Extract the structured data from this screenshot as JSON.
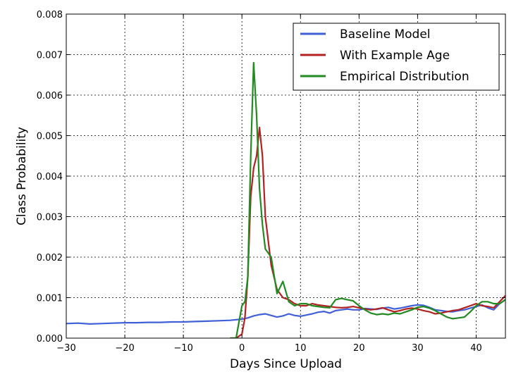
{
  "chart_data": {
    "type": "line",
    "title": "",
    "xlabel": "Days Since Upload",
    "ylabel": "Class Probability",
    "xlim": [
      -30,
      45
    ],
    "ylim": [
      0,
      0.008
    ],
    "xticks": [
      -30,
      -20,
      -10,
      0,
      10,
      20,
      30,
      40
    ],
    "xtick_labels": [
      "−30",
      "−20",
      "−10",
      "0",
      "10",
      "20",
      "30",
      "40"
    ],
    "yticks": [
      0,
      0.001,
      0.002,
      0.003,
      0.004,
      0.005,
      0.006,
      0.007,
      0.008
    ],
    "ytick_labels": [
      "0.000",
      "0.001",
      "0.002",
      "0.003",
      "0.004",
      "0.005",
      "0.006",
      "0.007",
      "0.008"
    ],
    "grid": true,
    "legend_position": "top-right",
    "series": [
      {
        "name": "Baseline Model",
        "color": "#4060d8",
        "x": [
          -30,
          -28,
          -26,
          -24,
          -22,
          -20,
          -18,
          -16,
          -14,
          -12,
          -10,
          -8,
          -6,
          -4,
          -2,
          0,
          1,
          2,
          3,
          4,
          5,
          6,
          7,
          8,
          9,
          10,
          11,
          12,
          13,
          14,
          15,
          16,
          17,
          18,
          19,
          20,
          21,
          22,
          23,
          24,
          25,
          26,
          27,
          28,
          29,
          30,
          31,
          32,
          33,
          34,
          35,
          36,
          37,
          38,
          39,
          40,
          41,
          42,
          43,
          44,
          45
        ],
        "y": [
          0.00036,
          0.00037,
          0.00035,
          0.00036,
          0.00037,
          0.00038,
          0.00038,
          0.00039,
          0.00039,
          0.0004,
          0.0004,
          0.00041,
          0.00042,
          0.00043,
          0.00044,
          0.00047,
          0.0005,
          0.00055,
          0.00058,
          0.0006,
          0.00056,
          0.00052,
          0.00055,
          0.0006,
          0.00056,
          0.00054,
          0.00057,
          0.0006,
          0.00064,
          0.00066,
          0.00062,
          0.00068,
          0.0007,
          0.00072,
          0.0007,
          0.0007,
          0.00073,
          0.00072,
          0.00071,
          0.00074,
          0.00076,
          0.00072,
          0.00074,
          0.00077,
          0.0008,
          0.00082,
          0.00081,
          0.00076,
          0.0007,
          0.00068,
          0.00066,
          0.00065,
          0.00068,
          0.0007,
          0.00074,
          0.00078,
          0.00082,
          0.00075,
          0.0007,
          0.00085,
          0.00095
        ]
      },
      {
        "name": "With Example Age",
        "color": "#b22222",
        "x": [
          -2,
          -1,
          0,
          0.5,
          1,
          1.5,
          2,
          2.5,
          3,
          3.5,
          4,
          5,
          6,
          7,
          8,
          9,
          10,
          11,
          12,
          13,
          14,
          15,
          16,
          17,
          18,
          19,
          20,
          21,
          22,
          23,
          24,
          25,
          26,
          27,
          28,
          29,
          30,
          31,
          32,
          33,
          34,
          35,
          36,
          37,
          38,
          39,
          40,
          41,
          42,
          43,
          44,
          45
        ],
        "y": [
          0,
          0,
          0.0001,
          0.0005,
          0.0015,
          0.0035,
          0.0042,
          0.0045,
          0.0052,
          0.0045,
          0.003,
          0.0018,
          0.0012,
          0.001,
          0.00095,
          0.00085,
          0.0008,
          0.0008,
          0.00085,
          0.00082,
          0.0008,
          0.00078,
          0.00076,
          0.00075,
          0.00076,
          0.00078,
          0.00075,
          0.00072,
          0.0007,
          0.00072,
          0.00075,
          0.0007,
          0.00065,
          0.00068,
          0.00072,
          0.00074,
          0.00072,
          0.00068,
          0.00065,
          0.0006,
          0.00062,
          0.00065,
          0.00068,
          0.0007,
          0.00075,
          0.0008,
          0.00085,
          0.0008,
          0.00078,
          0.00075,
          0.0009,
          0.00105
        ]
      },
      {
        "name": "Empirical Distribution",
        "color": "#228b22",
        "x": [
          -2,
          -1,
          0,
          0.5,
          1,
          1.5,
          2,
          2.5,
          3,
          3.5,
          4,
          5,
          6,
          7,
          8,
          9,
          10,
          11,
          12,
          13,
          14,
          15,
          16,
          17,
          18,
          19,
          20,
          21,
          22,
          23,
          24,
          25,
          26,
          27,
          28,
          29,
          30,
          31,
          32,
          33,
          34,
          35,
          36,
          37,
          38,
          39,
          40,
          41,
          42,
          43,
          44,
          45
        ],
        "y": [
          0,
          0,
          0.0008,
          0.0009,
          0.0015,
          0.0045,
          0.0068,
          0.0055,
          0.0037,
          0.0028,
          0.0022,
          0.002,
          0.0011,
          0.0014,
          0.0009,
          0.0008,
          0.00085,
          0.00085,
          0.0008,
          0.00078,
          0.00076,
          0.00075,
          0.00095,
          0.00098,
          0.00095,
          0.00092,
          0.0008,
          0.0007,
          0.00062,
          0.00058,
          0.0006,
          0.00058,
          0.00062,
          0.0006,
          0.00065,
          0.0007,
          0.00076,
          0.00078,
          0.00074,
          0.00068,
          0.0006,
          0.00052,
          0.00048,
          0.0005,
          0.00052,
          0.00065,
          0.0008,
          0.0009,
          0.0009,
          0.00085,
          0.00085,
          0.00095
        ]
      }
    ]
  }
}
